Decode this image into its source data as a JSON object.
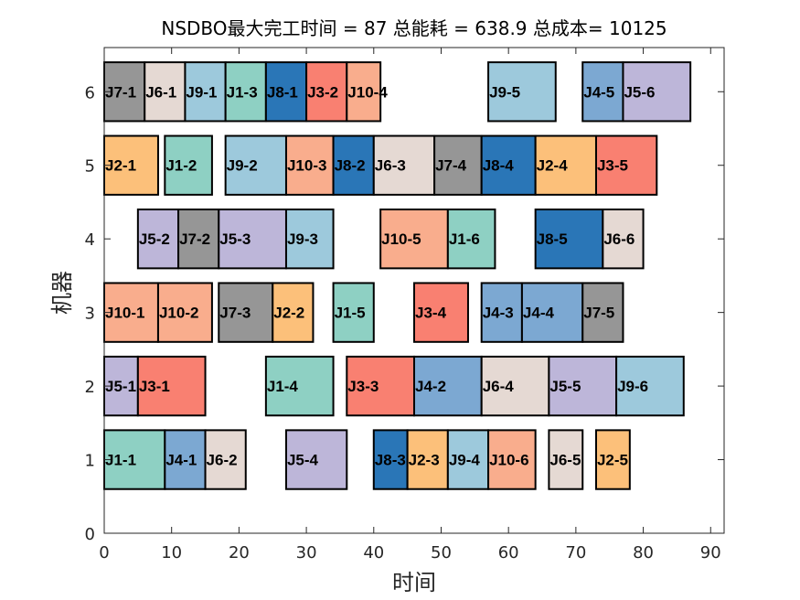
{
  "chart_data": {
    "type": "gantt",
    "title": "NSDBO最大完工时间 = 87 总能耗 = 638.9 总成本= 10125",
    "xlabel": "时间",
    "ylabel": "机器",
    "xlim": [
      0,
      92
    ],
    "ylim": [
      0,
      6.6
    ],
    "xticks": [
      "0",
      "10",
      "20",
      "30",
      "40",
      "50",
      "60",
      "70",
      "80",
      "90"
    ],
    "yticks": [
      "0",
      "1",
      "2",
      "3",
      "4",
      "5",
      "6"
    ],
    "grid": false,
    "job_colors": {
      "J1": "#8ed0c3",
      "J2": "#fcc07a",
      "J3": "#f98071",
      "J4": "#7ca8d2",
      "J5": "#bdb6d9",
      "J6": "#e5d9d3",
      "J7": "#969696",
      "J8": "#2a76b7",
      "J9": "#9dc9dc",
      "J10": "#f9ad8d"
    },
    "operations": [
      {
        "machine": 6,
        "job": "J7",
        "label": "J7-1",
        "start": 0,
        "end": 6
      },
      {
        "machine": 6,
        "job": "J6",
        "label": "J6-1",
        "start": 6,
        "end": 12
      },
      {
        "machine": 6,
        "job": "J9",
        "label": "J9-1",
        "start": 12,
        "end": 18
      },
      {
        "machine": 6,
        "job": "J1",
        "label": "J1-3",
        "start": 18,
        "end": 24
      },
      {
        "machine": 6,
        "job": "J8",
        "label": "J8-1",
        "start": 24,
        "end": 30
      },
      {
        "machine": 6,
        "job": "J3",
        "label": "J3-2",
        "start": 30,
        "end": 36
      },
      {
        "machine": 6,
        "job": "J10",
        "label": "J10-4",
        "start": 36,
        "end": 41
      },
      {
        "machine": 6,
        "job": "J9",
        "label": "J9-5",
        "start": 57,
        "end": 67
      },
      {
        "machine": 6,
        "job": "J4",
        "label": "J4-5",
        "start": 71,
        "end": 77
      },
      {
        "machine": 6,
        "job": "J5",
        "label": "J5-6",
        "start": 77,
        "end": 87
      },
      {
        "machine": 5,
        "job": "J2",
        "label": "J2-1",
        "start": 0,
        "end": 8
      },
      {
        "machine": 5,
        "job": "J1",
        "label": "J1-2",
        "start": 9,
        "end": 16
      },
      {
        "machine": 5,
        "job": "J9",
        "label": "J9-2",
        "start": 18,
        "end": 27
      },
      {
        "machine": 5,
        "job": "J10",
        "label": "J10-3",
        "start": 27,
        "end": 34
      },
      {
        "machine": 5,
        "job": "J8",
        "label": "J8-2",
        "start": 34,
        "end": 40
      },
      {
        "machine": 5,
        "job": "J6",
        "label": "J6-3",
        "start": 40,
        "end": 49
      },
      {
        "machine": 5,
        "job": "J7",
        "label": "J7-4",
        "start": 49,
        "end": 56
      },
      {
        "machine": 5,
        "job": "J8",
        "label": "J8-4",
        "start": 56,
        "end": 64
      },
      {
        "machine": 5,
        "job": "J2",
        "label": "J2-4",
        "start": 64,
        "end": 73
      },
      {
        "machine": 5,
        "job": "J3",
        "label": "J3-5",
        "start": 73,
        "end": 82
      },
      {
        "machine": 4,
        "job": "J5",
        "label": "J5-2",
        "start": 5,
        "end": 11
      },
      {
        "machine": 4,
        "job": "J7",
        "label": "J7-2",
        "start": 11,
        "end": 17
      },
      {
        "machine": 4,
        "job": "J5",
        "label": "J5-3",
        "start": 17,
        "end": 27
      },
      {
        "machine": 4,
        "job": "J9",
        "label": "J9-3",
        "start": 27,
        "end": 34
      },
      {
        "machine": 4,
        "job": "J10",
        "label": "J10-5",
        "start": 41,
        "end": 51
      },
      {
        "machine": 4,
        "job": "J1",
        "label": "J1-6",
        "start": 51,
        "end": 58
      },
      {
        "machine": 4,
        "job": "J8",
        "label": "J8-5",
        "start": 64,
        "end": 74
      },
      {
        "machine": 4,
        "job": "J6",
        "label": "J6-6",
        "start": 74,
        "end": 80
      },
      {
        "machine": 3,
        "job": "J10",
        "label": "J10-1",
        "start": 0,
        "end": 8
      },
      {
        "machine": 3,
        "job": "J10",
        "label": "J10-2",
        "start": 8,
        "end": 16
      },
      {
        "machine": 3,
        "job": "J7",
        "label": "J7-3",
        "start": 17,
        "end": 25
      },
      {
        "machine": 3,
        "job": "J2",
        "label": "J2-2",
        "start": 25,
        "end": 31
      },
      {
        "machine": 3,
        "job": "J1",
        "label": "J1-5",
        "start": 34,
        "end": 40
      },
      {
        "machine": 3,
        "job": "J3",
        "label": "J3-4",
        "start": 46,
        "end": 54
      },
      {
        "machine": 3,
        "job": "J4",
        "label": "J4-3",
        "start": 56,
        "end": 62
      },
      {
        "machine": 3,
        "job": "J4",
        "label": "J4-4",
        "start": 62,
        "end": 71
      },
      {
        "machine": 3,
        "job": "J7",
        "label": "J7-5",
        "start": 71,
        "end": 77
      },
      {
        "machine": 2,
        "job": "J5",
        "label": "J5-1",
        "start": 0,
        "end": 5
      },
      {
        "machine": 2,
        "job": "J3",
        "label": "J3-1",
        "start": 5,
        "end": 15
      },
      {
        "machine": 2,
        "job": "J1",
        "label": "J1-4",
        "start": 24,
        "end": 34
      },
      {
        "machine": 2,
        "job": "J3",
        "label": "J3-3",
        "start": 36,
        "end": 46
      },
      {
        "machine": 2,
        "job": "J4",
        "label": "J4-2",
        "start": 46,
        "end": 56
      },
      {
        "machine": 2,
        "job": "J6",
        "label": "J6-4",
        "start": 56,
        "end": 66
      },
      {
        "machine": 2,
        "job": "J5",
        "label": "J5-5",
        "start": 66,
        "end": 76
      },
      {
        "machine": 2,
        "job": "J9",
        "label": "J9-6",
        "start": 76,
        "end": 86
      },
      {
        "machine": 1,
        "job": "J1",
        "label": "J1-1",
        "start": 0,
        "end": 9
      },
      {
        "machine": 1,
        "job": "J4",
        "label": "J4-1",
        "start": 9,
        "end": 15
      },
      {
        "machine": 1,
        "job": "J6",
        "label": "J6-2",
        "start": 15,
        "end": 21
      },
      {
        "machine": 1,
        "job": "J5",
        "label": "J5-4",
        "start": 27,
        "end": 36
      },
      {
        "machine": 1,
        "job": "J8",
        "label": "J8-3",
        "start": 40,
        "end": 45
      },
      {
        "machine": 1,
        "job": "J2",
        "label": "J2-3",
        "start": 45,
        "end": 51
      },
      {
        "machine": 1,
        "job": "J9",
        "label": "J9-4",
        "start": 51,
        "end": 57
      },
      {
        "machine": 1,
        "job": "J10",
        "label": "J10-6",
        "start": 57,
        "end": 64
      },
      {
        "machine": 1,
        "job": "J6",
        "label": "J6-5",
        "start": 66,
        "end": 71
      },
      {
        "machine": 1,
        "job": "J2",
        "label": "J2-5",
        "start": 73,
        "end": 78
      }
    ]
  }
}
